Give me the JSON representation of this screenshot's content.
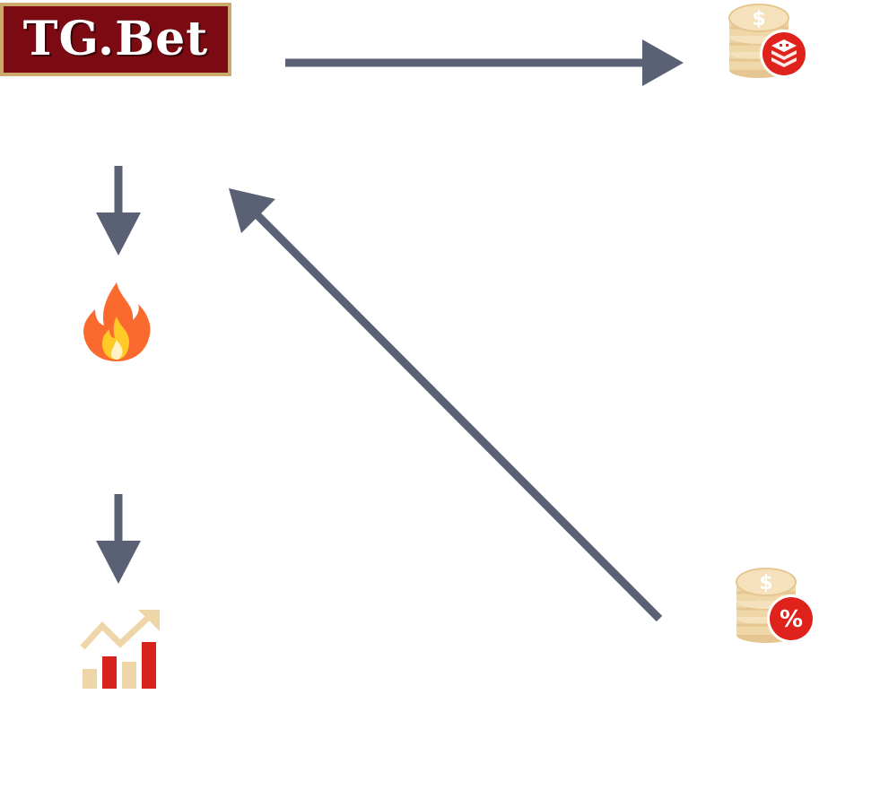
{
  "logo": {
    "text": "TG.Bet",
    "bg_color": "#7c0a12",
    "border_color": "#c9a86a",
    "text_color": "#ffffff"
  },
  "icons": {
    "coins_badge": "coins-with-red-badge-icon",
    "fire": "fire-icon",
    "growth_chart": "growth-bar-chart-icon",
    "coins_percent": "coins-with-percent-badge-icon",
    "percent_symbol": "%"
  },
  "colors": {
    "arrow": "#5a6175",
    "coin": "#f0d7a8",
    "coin_dark": "#e6c690",
    "badge_red": "#e0221c",
    "fire_outer": "#fa6a2e",
    "fire_inner": "#ffca28",
    "fire_core": "#fff3c4",
    "bar_red": "#d8231c",
    "bar_light": "#efd6a9"
  },
  "arrows": [
    {
      "from": "logo",
      "to": "coins-badge",
      "direction": "right"
    },
    {
      "from": "logo",
      "to": "fire",
      "direction": "down"
    },
    {
      "from": "fire",
      "to": "growth-chart",
      "direction": "down"
    },
    {
      "from": "coins-percent",
      "to": "logo",
      "direction": "up-left"
    }
  ]
}
